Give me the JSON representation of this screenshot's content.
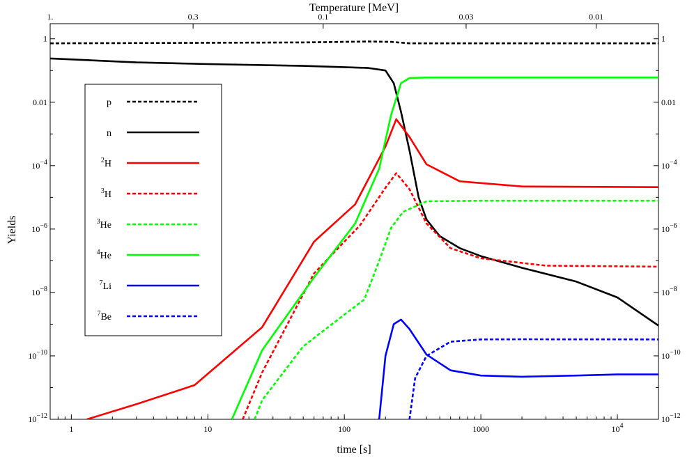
{
  "chart_data": {
    "type": "line",
    "title": "",
    "xlabel": "time [s]",
    "ylabel": "Yields",
    "top_axis_label": "Temperature [MeV]",
    "x_scale": "log",
    "y_scale": "log",
    "xlim": [
      0.7,
      20000
    ],
    "ylim": [
      1e-12,
      3
    ],
    "grid": false,
    "legend_position": "upper-left",
    "x_ticks": [
      {
        "value": 1,
        "label": "1"
      },
      {
        "value": 10,
        "label": "10"
      },
      {
        "value": 100,
        "label": "100"
      },
      {
        "value": 1000,
        "label": "1000"
      },
      {
        "value": 10000,
        "label": "10",
        "exp": "4"
      }
    ],
    "y_ticks": [
      {
        "value": 1e-12,
        "label": "10",
        "exp": "−12"
      },
      {
        "value": 1e-10,
        "label": "10",
        "exp": "−10"
      },
      {
        "value": 1e-08,
        "label": "10",
        "exp": "−8"
      },
      {
        "value": 1e-06,
        "label": "10",
        "exp": "−6"
      },
      {
        "value": 0.0001,
        "label": "10",
        "exp": "−4"
      },
      {
        "value": 0.01,
        "label": "0.01",
        "exp": ""
      },
      {
        "value": 1,
        "label": "1",
        "exp": ""
      }
    ],
    "top_ticks": [
      {
        "value": 0.7,
        "label": "1."
      },
      {
        "value": 7.8,
        "label": "0.3"
      },
      {
        "value": 70,
        "label": "0.1"
      },
      {
        "value": 780,
        "label": "0.03"
      },
      {
        "value": 7000,
        "label": "0.01"
      }
    ],
    "series": [
      {
        "name": "p",
        "sup": "",
        "color": "#000000",
        "dashed": true,
        "points": [
          [
            0.7,
            0.72
          ],
          [
            5,
            0.74
          ],
          [
            50,
            0.77
          ],
          [
            150,
            0.82
          ],
          [
            220,
            0.8
          ],
          [
            300,
            0.72
          ],
          [
            1000,
            0.72
          ],
          [
            20000,
            0.72
          ]
        ]
      },
      {
        "name": "n",
        "sup": "",
        "color": "#000000",
        "dashed": false,
        "points": [
          [
            0.7,
            0.24
          ],
          [
            3,
            0.18
          ],
          [
            10,
            0.16
          ],
          [
            50,
            0.14
          ],
          [
            150,
            0.12
          ],
          [
            200,
            0.1
          ],
          [
            230,
            0.04
          ],
          [
            260,
            0.005
          ],
          [
            300,
            0.0003
          ],
          [
            350,
            1e-05
          ],
          [
            400,
            2e-06
          ],
          [
            500,
            6e-07
          ],
          [
            700,
            2.5e-07
          ],
          [
            1000,
            1.4e-07
          ],
          [
            2000,
            6e-08
          ],
          [
            5000,
            2.2e-08
          ],
          [
            10000,
            7e-09
          ],
          [
            20000,
            9e-10
          ]
        ]
      },
      {
        "name": "H",
        "sup": "2",
        "color": "#ff0000",
        "dashed": false,
        "points": [
          [
            1.3,
            1e-12
          ],
          [
            3,
            3e-12
          ],
          [
            8,
            1.2e-11
          ],
          [
            25,
            8e-10
          ],
          [
            60,
            4e-07
          ],
          [
            120,
            6e-06
          ],
          [
            200,
            0.0004
          ],
          [
            240,
            0.0029
          ],
          [
            300,
            0.0008
          ],
          [
            400,
            0.00011
          ],
          [
            700,
            3.2e-05
          ],
          [
            2000,
            2.2e-05
          ],
          [
            20000,
            2.1e-05
          ]
        ]
      },
      {
        "name": "H",
        "sup": "3",
        "color": "#ff0000",
        "dashed": true,
        "points": [
          [
            18,
            1e-12
          ],
          [
            25,
            3e-11
          ],
          [
            60,
            4e-08
          ],
          [
            130,
            1.3e-06
          ],
          [
            200,
            2e-05
          ],
          [
            240,
            5.8e-05
          ],
          [
            300,
            1.8e-05
          ],
          [
            400,
            1.5e-06
          ],
          [
            600,
            2.5e-07
          ],
          [
            1000,
            1.2e-07
          ],
          [
            3000,
            7e-08
          ],
          [
            20000,
            6.5e-08
          ]
        ]
      },
      {
        "name": "He",
        "sup": "3",
        "color": "#00ff00",
        "dashed": true,
        "points": [
          [
            22,
            1e-12
          ],
          [
            25,
            4e-12
          ],
          [
            50,
            2e-10
          ],
          [
            100,
            2e-09
          ],
          [
            140,
            6e-09
          ],
          [
            180,
            1e-07
          ],
          [
            220,
            1.1e-06
          ],
          [
            270,
            3.5e-06
          ],
          [
            400,
            7.5e-06
          ],
          [
            1000,
            7.8e-06
          ],
          [
            20000,
            7.8e-06
          ]
        ]
      },
      {
        "name": "He",
        "sup": "4",
        "color": "#00ff00",
        "dashed": false,
        "points": [
          [
            15,
            1e-12
          ],
          [
            25,
            1.5e-10
          ],
          [
            60,
            3e-08
          ],
          [
            120,
            1.5e-06
          ],
          [
            180,
            8e-05
          ],
          [
            220,
            0.004
          ],
          [
            260,
            0.04
          ],
          [
            300,
            0.058
          ],
          [
            400,
            0.06
          ],
          [
            20000,
            0.06
          ]
        ]
      },
      {
        "name": "Li",
        "sup": "7",
        "color": "#0000ff",
        "dashed": false,
        "points": [
          [
            180,
            1e-12
          ],
          [
            200,
            1e-10
          ],
          [
            230,
            1e-09
          ],
          [
            260,
            1.4e-09
          ],
          [
            300,
            7e-10
          ],
          [
            400,
            1.1e-10
          ],
          [
            600,
            3.5e-11
          ],
          [
            1000,
            2.4e-11
          ],
          [
            2000,
            2.2e-11
          ],
          [
            5000,
            2.4e-11
          ],
          [
            10000,
            2.6e-11
          ],
          [
            20000,
            2.6e-11
          ]
        ]
      },
      {
        "name": "Be",
        "sup": "7",
        "color": "#0000ff",
        "dashed": true,
        "points": [
          [
            300,
            1e-12
          ],
          [
            330,
            2e-11
          ],
          [
            400,
            1e-10
          ],
          [
            600,
            2.8e-10
          ],
          [
            1000,
            3.3e-10
          ],
          [
            2000,
            3.35e-10
          ],
          [
            20000,
            3.3e-10
          ]
        ]
      }
    ]
  }
}
